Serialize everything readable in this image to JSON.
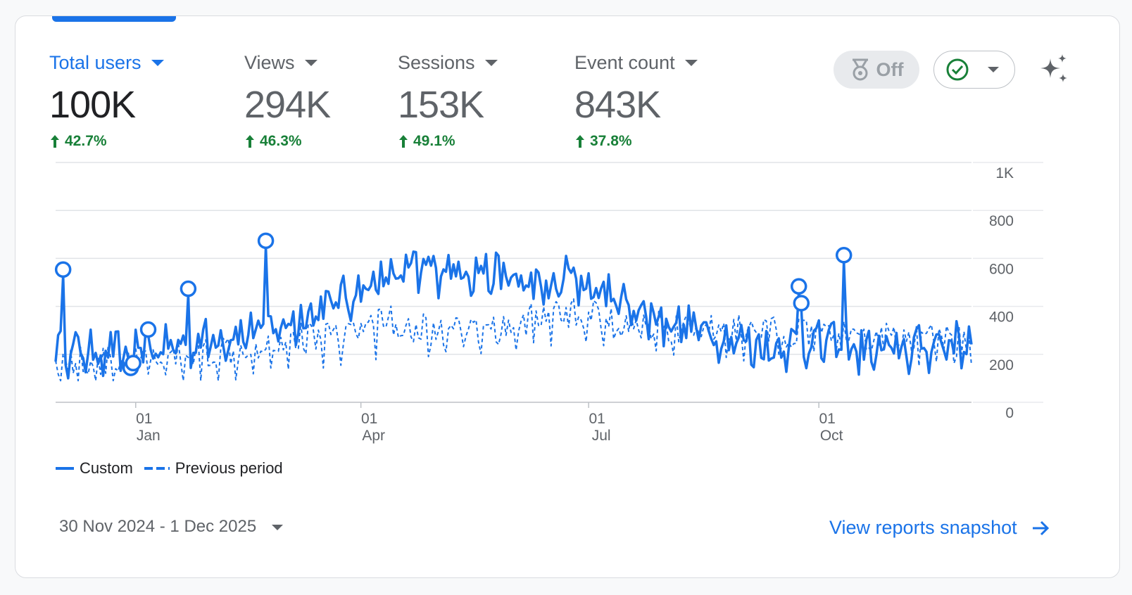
{
  "metrics": [
    {
      "label": "Total users",
      "value": "100K",
      "change": "42.7%",
      "active": true
    },
    {
      "label": "Views",
      "value": "294K",
      "change": "46.3%",
      "active": false
    },
    {
      "label": "Sessions",
      "value": "153K",
      "change": "49.1%",
      "active": false
    },
    {
      "label": "Event count",
      "value": "843K",
      "change": "37.8%",
      "active": false
    }
  ],
  "controls": {
    "toggle_label": "Off",
    "toggle_icon": "medal-icon",
    "status_icon": "check-circle-icon",
    "insights_icon": "sparkle-icon"
  },
  "colors": {
    "accent": "#1a73e8",
    "positive": "#188038"
  },
  "chart_data": {
    "type": "line",
    "ylim": [
      0,
      1000
    ],
    "yticks": [
      "0",
      "200",
      "400",
      "600",
      "800",
      "1K"
    ],
    "x_ticks": [
      {
        "day": "01",
        "month": "Jan"
      },
      {
        "day": "01",
        "month": "Apr"
      },
      {
        "day": "01",
        "month": "Jul"
      },
      {
        "day": "01",
        "month": "Oct"
      }
    ],
    "x_range": [
      "2024-11-30",
      "2025-12-01"
    ],
    "grid": true,
    "series": [
      {
        "name": "Custom",
        "style": "solid",
        "anomalies": [
          {
            "date": "2024-12-03",
            "value": 530
          },
          {
            "date": "2024-12-30",
            "value": 120
          },
          {
            "date": "2024-12-31",
            "value": 140
          },
          {
            "date": "2025-01-06",
            "value": 280
          },
          {
            "date": "2025-01-22",
            "value": 450
          },
          {
            "date": "2025-02-22",
            "value": 650
          },
          {
            "date": "2025-09-23",
            "value": 460
          },
          {
            "date": "2025-09-24",
            "value": 390
          },
          {
            "date": "2025-10-11",
            "value": 590
          }
        ]
      },
      {
        "name": "Previous period",
        "style": "dashed"
      }
    ]
  },
  "legend": {
    "custom": "Custom",
    "previous": "Previous period"
  },
  "footer": {
    "date_range": "30 Nov 2024 - 1 Dec 2025",
    "snapshot_link": "View reports snapshot"
  }
}
